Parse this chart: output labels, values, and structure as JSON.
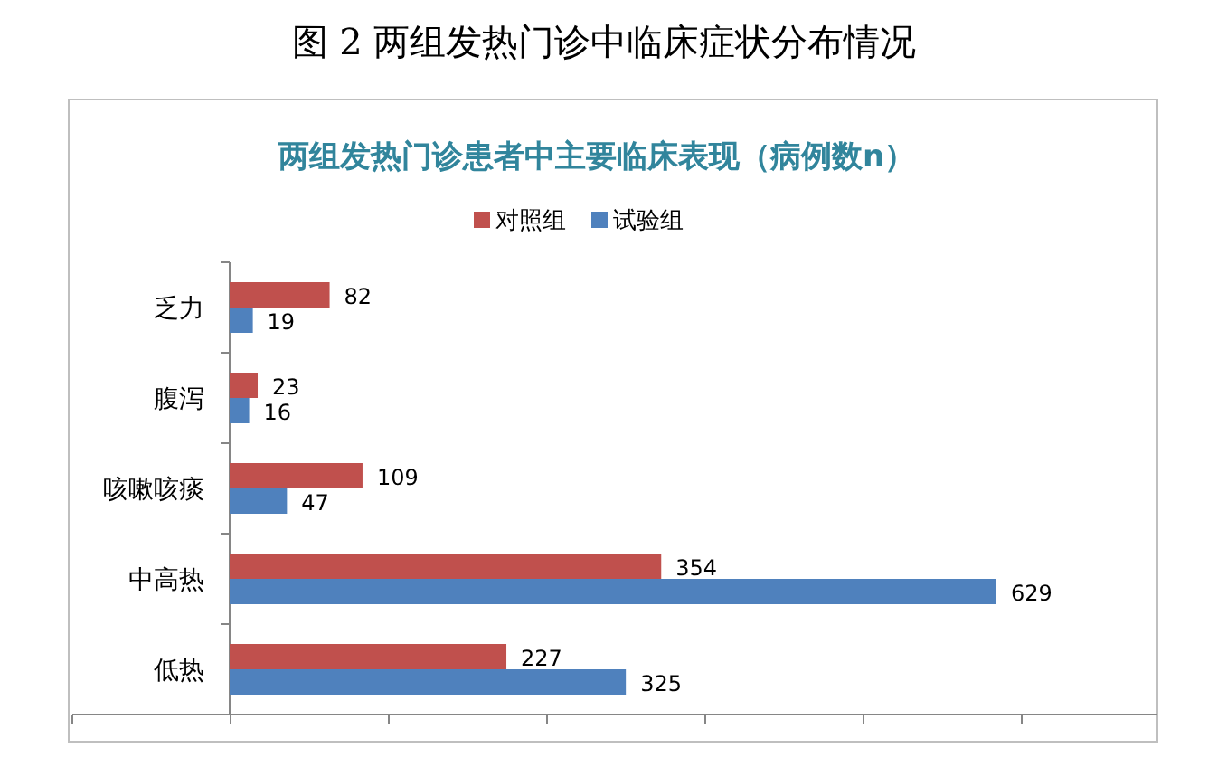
{
  "chart_data": {
    "type": "bar",
    "orientation": "horizontal",
    "title": "图 2  两组发热门诊中临床症状分布情况",
    "subtitle": "两组发热门诊患者中主要临床表现（病例数n）",
    "categories": [
      "乏力",
      "腹泻",
      "咳嗽咳痰",
      "中高热",
      "低热"
    ],
    "series": [
      {
        "name": "对照组",
        "color": "#c0504d",
        "values": [
          82,
          23,
          109,
          354,
          227
        ]
      },
      {
        "name": "试验组",
        "color": "#4f81bd",
        "values": [
          19,
          16,
          47,
          629,
          325
        ]
      }
    ],
    "data_labels": true,
    "legend": "top",
    "tick_labels": "y",
    "grid": false
  }
}
